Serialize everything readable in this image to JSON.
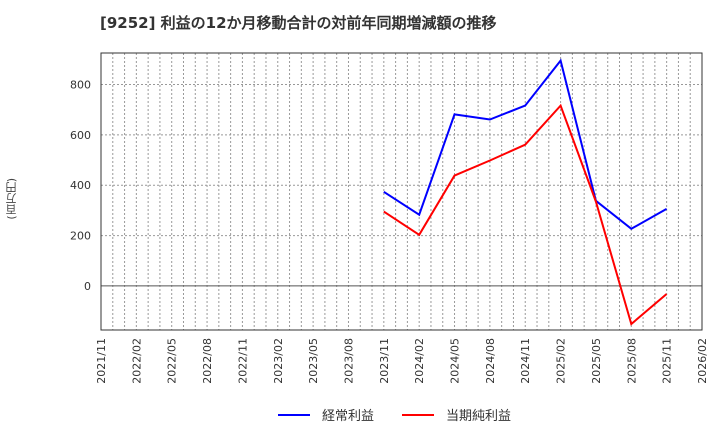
{
  "title": "[9252]  利益の12か月移動合計の対前年同期増減額の推移",
  "y_axis_label": "(百万円)",
  "legend": [
    {
      "label": "経常利益",
      "color": "#0000ff"
    },
    {
      "label": "当期純利益",
      "color": "#ff0000"
    }
  ],
  "chart_data": {
    "type": "line",
    "title": "[9252]  利益の12か月移動合計の対前年同期増減額の推移",
    "xlabel": "",
    "ylabel": "(百万円)",
    "x_tick_labels": [
      "2021/11",
      "2022/02",
      "2022/05",
      "2022/08",
      "2022/11",
      "2023/02",
      "2023/05",
      "2023/08",
      "2023/11",
      "2024/02",
      "2024/05",
      "2024/08",
      "2024/11",
      "2025/02",
      "2025/05",
      "2025/08",
      "2025/11",
      "2026/02"
    ],
    "y_tick_labels": [
      "0",
      "200",
      "400",
      "600",
      "800"
    ],
    "ylim": [
      -175,
      925
    ],
    "grid": true,
    "legend_position": "bottom",
    "categories": [
      "2023/11",
      "2024/02",
      "2024/05",
      "2024/08",
      "2024/11",
      "2025/02",
      "2025/05",
      "2025/08",
      "2025/11"
    ],
    "series": [
      {
        "name": "経常利益",
        "color": "#0000ff",
        "values": [
          374,
          283,
          681,
          661,
          716,
          895,
          338,
          227,
          306
        ]
      },
      {
        "name": "当期純利益",
        "color": "#ff0000",
        "values": [
          295,
          203,
          438,
          498,
          561,
          716,
          335,
          -151,
          -32
        ]
      }
    ]
  }
}
